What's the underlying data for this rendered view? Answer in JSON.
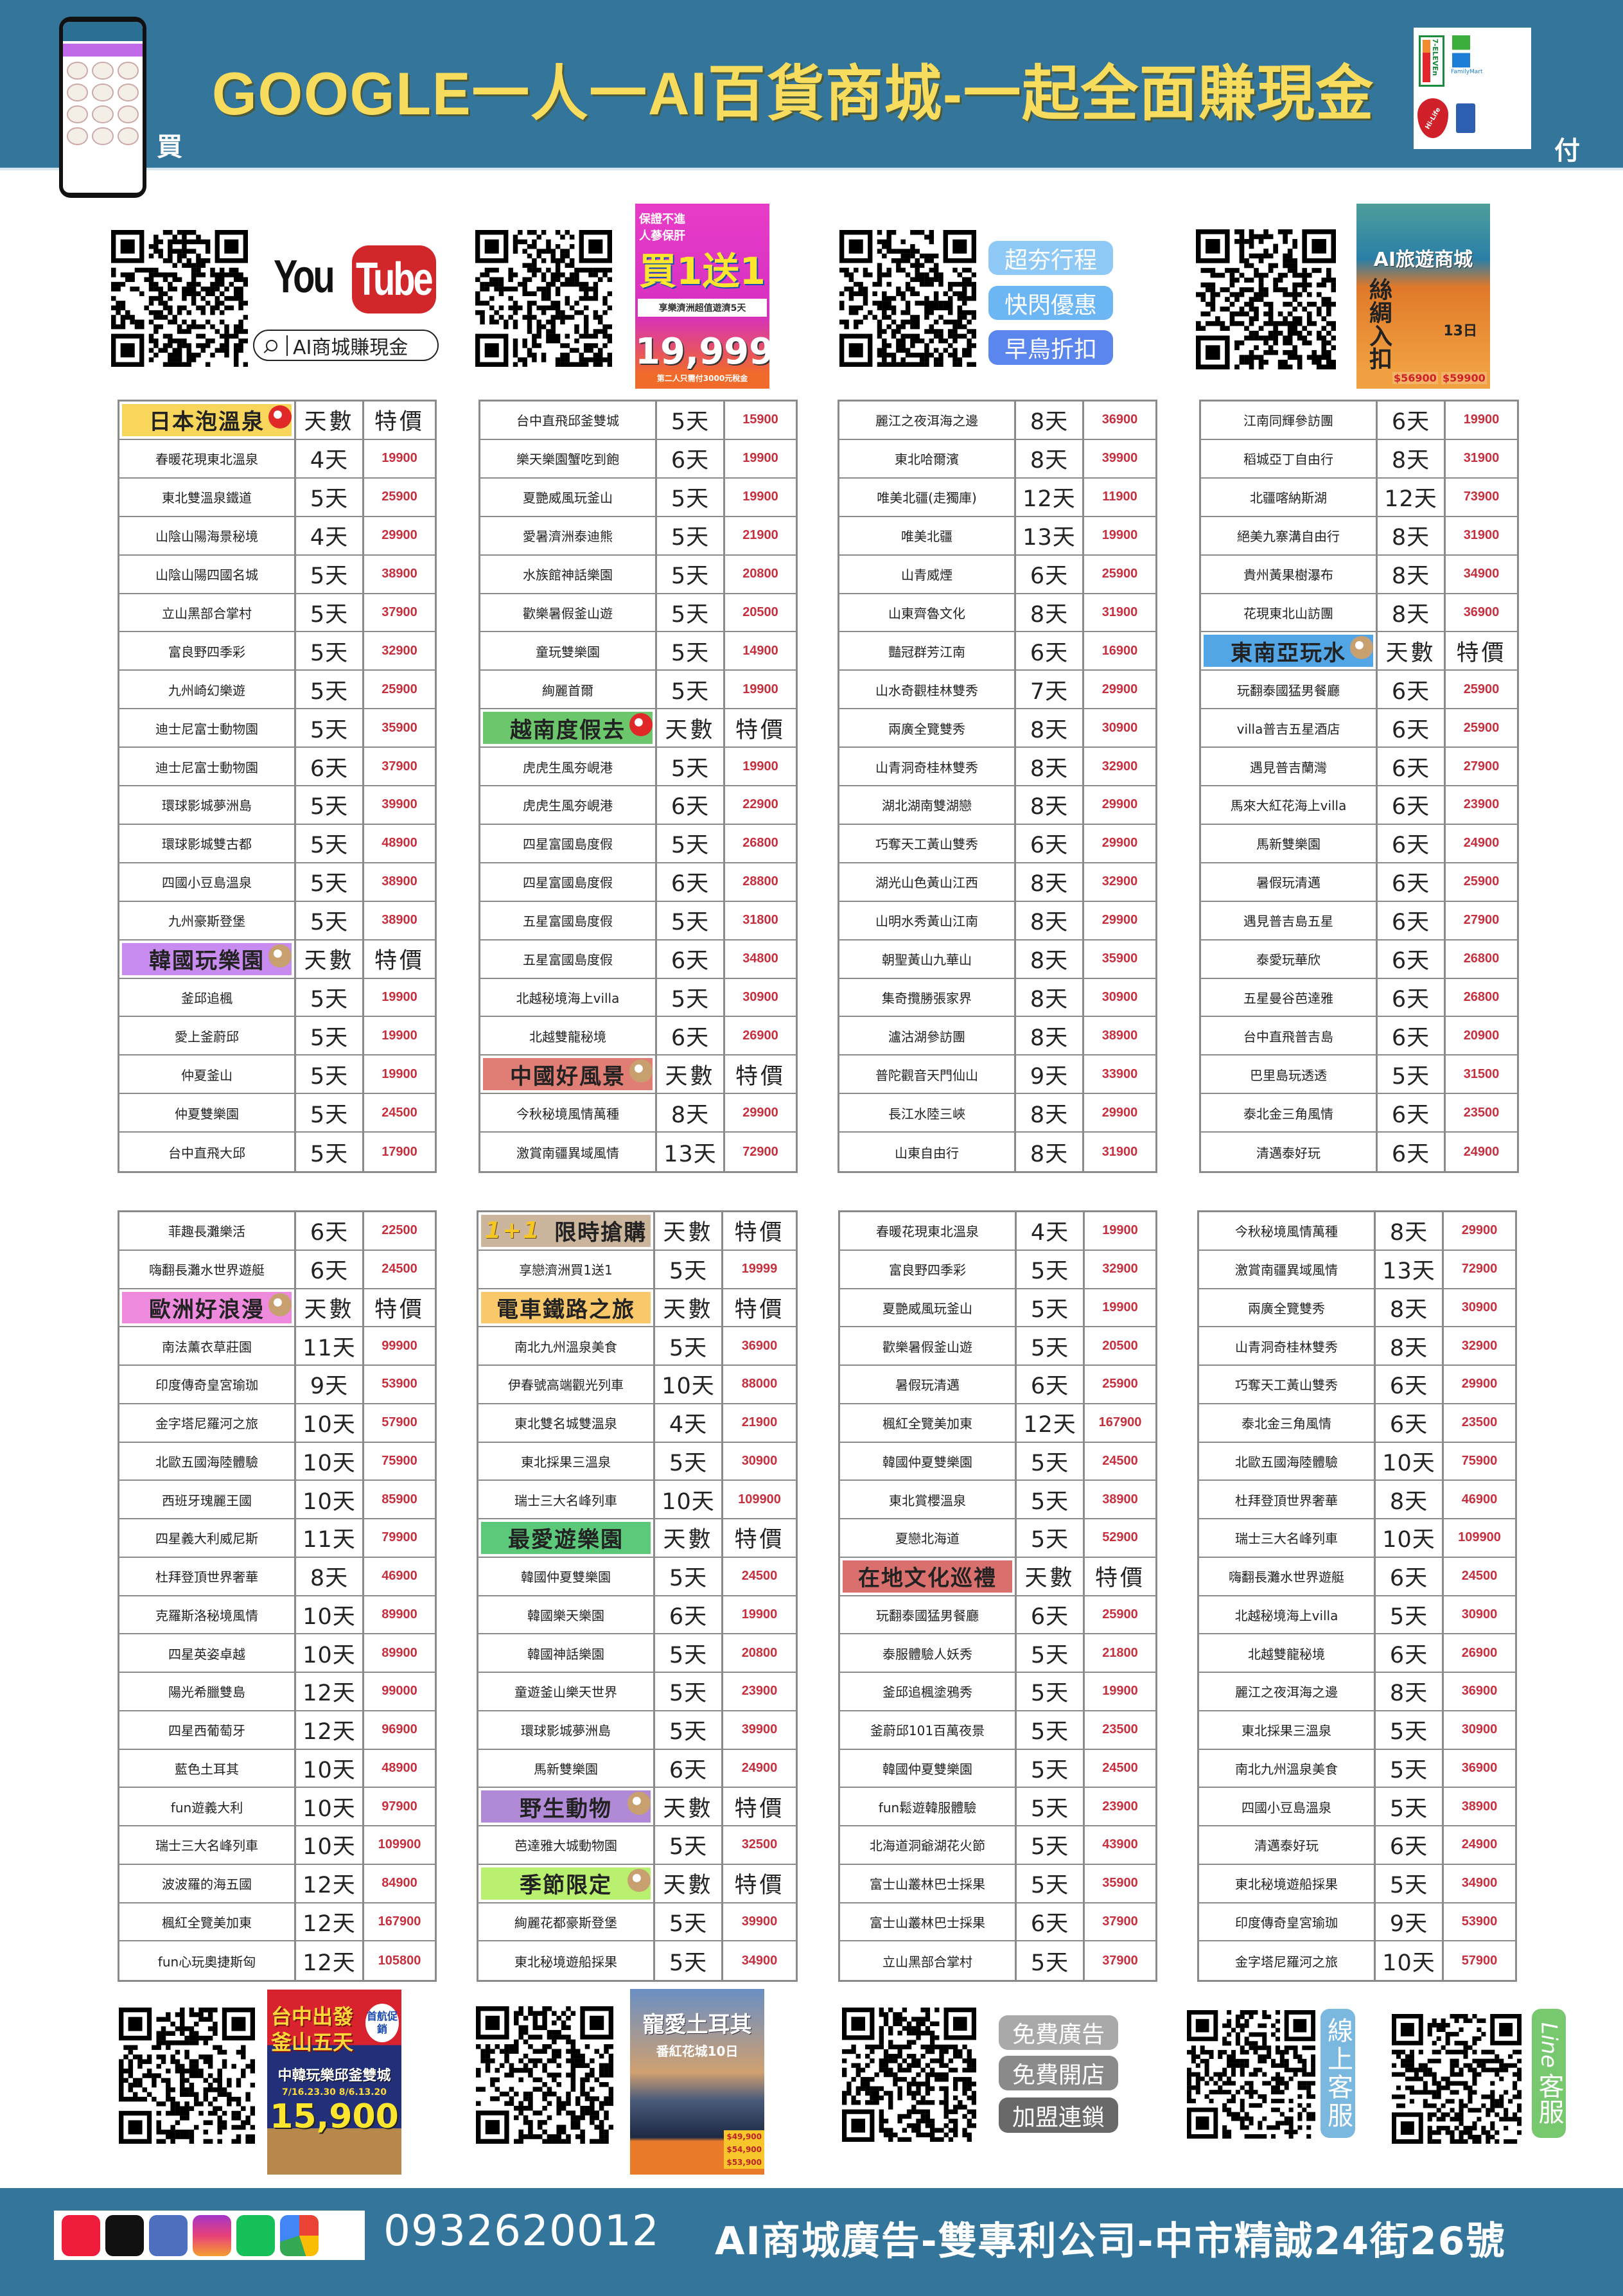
{
  "header": {
    "title": "GOOGLE一人一AI百貨商城-一起全面賺現金",
    "buy_char": "買",
    "pay_char": "付",
    "pay_logos": {
      "seven_eleven": "7-ELEVEn",
      "familymart": "FamilyMart",
      "hilife": "Hi-Life",
      "card": "credit-card"
    },
    "color": "#34759c",
    "title_color": "#f8dc5e"
  },
  "promo_top": {
    "youtube_you": "You",
    "youtube_tube": "Tube",
    "youtube_search": "AI商城賺現金",
    "ad_jeju": {
      "tag": "保證不進人蔘保肝",
      "headline": "買1送1",
      "sub": "享樂濟洲超值遊濟5天",
      "price": "19,999",
      "note": "第二人只需付3000元稅金"
    },
    "pills": [
      {
        "label": "超夯行程",
        "color": "#8fcaf7"
      },
      {
        "label": "快閃優惠",
        "color": "#6db6f4"
      },
      {
        "label": "早鳥折扣",
        "color": "#5b86ee"
      }
    ],
    "ad_silkroad": {
      "brand": "AI旅遊商城",
      "headline": "絲綢入扣",
      "days": "13日",
      "price1": "$56900",
      "price2": "$59900"
    }
  },
  "table_headers": {
    "days": "天數",
    "price": "特價"
  },
  "tables": [
    {
      "rows": [
        {
          "label": "日本泡溫泉",
          "color": "#f8d65c",
          "icon": "japan-flag-fan-icon"
        },
        [
          "春暖花現東北溫泉",
          "4天",
          "19900"
        ],
        [
          "東北雙溫泉鐵道",
          "5天",
          "25900"
        ],
        [
          "山陰山陽海景秘境",
          "4天",
          "29900"
        ],
        [
          "山陰山陽四國名城",
          "5天",
          "38900"
        ],
        [
          "立山黑部合掌村",
          "5天",
          "37900"
        ],
        [
          "富良野四季彩",
          "5天",
          "32900"
        ],
        [
          "九州崎幻樂遊",
          "5天",
          "25900"
        ],
        [
          "迪士尼富士動物園",
          "5天",
          "35900"
        ],
        [
          "迪士尼富士動物園",
          "6天",
          "37900"
        ],
        [
          "環球影城夢洲島",
          "5天",
          "39900"
        ],
        [
          "環球影城雙古都",
          "5天",
          "48900"
        ],
        [
          "四國小豆島溫泉",
          "5天",
          "38900"
        ],
        [
          "九州豪斯登堡",
          "5天",
          "38900"
        ],
        {
          "label": "韓國玩樂園",
          "color": "#c88cf0",
          "icon": "korea-fan-icon"
        },
        [
          "釜邱追楓",
          "5天",
          "19900"
        ],
        [
          "愛上釜蔚邱",
          "5天",
          "19900"
        ],
        [
          "仲夏釜山",
          "5天",
          "19900"
        ],
        [
          "仲夏雙樂園",
          "5天",
          "24500"
        ],
        [
          "台中直飛大邱",
          "5天",
          "17900"
        ]
      ]
    },
    {
      "rows": [
        [
          "台中直飛邱釜雙城",
          "5天",
          "15900"
        ],
        [
          "樂天樂園蟹吃到飽",
          "6天",
          "19900"
        ],
        [
          "夏艷威風玩釜山",
          "5天",
          "19900"
        ],
        [
          "愛暑濟洲泰迪熊",
          "5天",
          "21900"
        ],
        [
          "水族館神話樂園",
          "5天",
          "20800"
        ],
        [
          "歡樂暑假釜山遊",
          "5天",
          "20500"
        ],
        [
          "童玩雙樂園",
          "5天",
          "14900"
        ],
        [
          "絢麗首爾",
          "5天",
          "19900"
        ],
        {
          "label": "越南度假去",
          "color": "#6cc66c",
          "icon": "vietnam-flag-icon"
        },
        [
          "虎虎生風夯峴港",
          "5天",
          "19900"
        ],
        [
          "虎虎生風夯峴港",
          "6天",
          "22900"
        ],
        [
          "四星富國島度假",
          "5天",
          "26800"
        ],
        [
          "四星富國島度假",
          "6天",
          "28800"
        ],
        [
          "五星富國島度假",
          "5天",
          "31800"
        ],
        [
          "五星富國島度假",
          "6天",
          "34800"
        ],
        [
          "北越秘境海上villa",
          "5天",
          "30900"
        ],
        [
          "北越雙龍秘境",
          "6天",
          "26900"
        ],
        {
          "label": "中國好風景",
          "color": "#e07d74",
          "icon": "dumpling-steamer-icon"
        },
        [
          "今秋秘境風情萬種",
          "8天",
          "29900"
        ],
        [
          "激賞南疆異域風情",
          "13天",
          "72900"
        ]
      ]
    },
    {
      "rows": [
        [
          "麗江之夜洱海之邊",
          "8天",
          "36900"
        ],
        [
          "東北哈爾濱",
          "8天",
          "39900"
        ],
        [
          "唯美北疆(走獨庫)",
          "12天",
          "11900"
        ],
        [
          "唯美北疆",
          "13天",
          "19900"
        ],
        [
          "山青威煙",
          "6天",
          "25900"
        ],
        [
          "山東齊魯文化",
          "8天",
          "31900"
        ],
        [
          "豔冠群芳江南",
          "6天",
          "16900"
        ],
        [
          "山水奇觀桂林雙秀",
          "7天",
          "29900"
        ],
        [
          "兩廣全覽雙秀",
          "8天",
          "30900"
        ],
        [
          "山青洞奇桂林雙秀",
          "8天",
          "32900"
        ],
        [
          "湖北湖南雙湖戀",
          "8天",
          "29900"
        ],
        [
          "巧奪天工黃山雙秀",
          "6天",
          "29900"
        ],
        [
          "湖光山色黃山江西",
          "8天",
          "32900"
        ],
        [
          "山明水秀黃山江南",
          "8天",
          "29900"
        ],
        [
          "朝聖黃山九華山",
          "8天",
          "35900"
        ],
        [
          "集奇攬勝張家界",
          "8天",
          "30900"
        ],
        [
          "瀘沽湖參訪團",
          "8天",
          "38900"
        ],
        [
          "普陀觀音天門仙山",
          "9天",
          "33900"
        ],
        [
          "長江水陸三峽",
          "8天",
          "29900"
        ],
        [
          "山東自由行",
          "8天",
          "31900"
        ]
      ]
    },
    {
      "rows": [
        [
          "江南同輝參訪團",
          "6天",
          "19900"
        ],
        [
          "稻城亞丁自由行",
          "8天",
          "31900"
        ],
        [
          "北疆喀納斯湖",
          "12天",
          "73900"
        ],
        [
          "絕美九寨溝自由行",
          "8天",
          "31900"
        ],
        [
          "貴州黃果樹瀑布",
          "8天",
          "34900"
        ],
        [
          "花現東北山訪團",
          "8天",
          "36900"
        ],
        {
          "label": "東南亞玩水",
          "color": "#52a6e6",
          "icon": "buddha-statue-icon"
        },
        [
          "玩翻泰國猛男餐廳",
          "6天",
          "25900"
        ],
        [
          "villa普吉五星酒店",
          "6天",
          "25900"
        ],
        [
          "遇見普吉蘭灣",
          "6天",
          "27900"
        ],
        [
          "馬來大紅花海上villa",
          "6天",
          "23900"
        ],
        [
          "馬新雙樂園",
          "6天",
          "24900"
        ],
        [
          "暑假玩清邁",
          "6天",
          "25900"
        ],
        [
          "遇見普吉島五星",
          "6天",
          "27900"
        ],
        [
          "泰愛玩華欣",
          "6天",
          "26800"
        ],
        [
          "五星曼谷芭達雅",
          "6天",
          "26800"
        ],
        [
          "台中直飛普吉島",
          "6天",
          "20900"
        ],
        [
          "巴里島玩透透",
          "5天",
          "31500"
        ],
        [
          "泰北金三角風情",
          "6天",
          "23500"
        ],
        [
          "清邁泰好玩",
          "6天",
          "24900"
        ]
      ]
    },
    {
      "rows": [
        [
          "菲趣長灘樂活",
          "6天",
          "22500"
        ],
        [
          "嗨翻長灘水世界遊艇",
          "6天",
          "24500"
        ],
        {
          "label": "歐洲好浪漫",
          "color": "#ee8ade",
          "icon": "windmill-icon"
        },
        [
          "南法薰衣草莊園",
          "11天",
          "99900"
        ],
        [
          "印度傳奇皇宮瑜珈",
          "9天",
          "53900"
        ],
        [
          "金字塔尼羅河之旅",
          "10天",
          "57900"
        ],
        [
          "北歐五國海陸體驗",
          "10天",
          "75900"
        ],
        [
          "西班牙瑰麗王國",
          "10天",
          "85900"
        ],
        [
          "四星義大利威尼斯",
          "11天",
          "79900"
        ],
        [
          "杜拜登頂世界奢華",
          "8天",
          "46900"
        ],
        [
          "克羅斯洛秘境風情",
          "10天",
          "89900"
        ],
        [
          "四星英姿卓越",
          "10天",
          "89900"
        ],
        [
          "陽光希臘雙島",
          "12天",
          "99000"
        ],
        [
          "四星西葡萄牙",
          "12天",
          "96900"
        ],
        [
          "藍色土耳其",
          "10天",
          "48900"
        ],
        [
          "fun遊義大利",
          "10天",
          "97900"
        ],
        [
          "瑞士三大名峰列車",
          "10天",
          "109900"
        ],
        [
          "波波羅的海五國",
          "12天",
          "84900"
        ],
        [
          "楓紅全覽美加東",
          "12天",
          "167900"
        ],
        [
          "fun心玩奧捷斯匈",
          "12天",
          "105800"
        ]
      ]
    },
    {
      "rows": [
        {
          "label": "限時搶購",
          "badge": "1+1",
          "color": "#cbb59c"
        },
        [
          "享戀濟洲買1送1",
          "5天",
          "19999"
        ],
        {
          "label": "電車鐵路之旅",
          "color": "#f8c86a"
        },
        [
          "南北九州溫泉美食",
          "5天",
          "36900"
        ],
        [
          "伊春號高端觀光列車",
          "10天",
          "88000"
        ],
        [
          "東北雙名城雙溫泉",
          "4天",
          "21900"
        ],
        [
          "東北採果三溫泉",
          "5天",
          "30900"
        ],
        [
          "瑞士三大名峰列車",
          "10天",
          "109900"
        ],
        {
          "label": "最愛遊樂園",
          "color": "#5cc87a"
        },
        [
          "韓國仲夏雙樂園",
          "5天",
          "24500"
        ],
        [
          "韓國樂天樂園",
          "6天",
          "19900"
        ],
        [
          "韓國神話樂園",
          "5天",
          "20800"
        ],
        [
          "童遊釜山樂天世界",
          "5天",
          "23900"
        ],
        [
          "環球影城夢洲島",
          "5天",
          "39900"
        ],
        [
          "馬新雙樂園",
          "6天",
          "24900"
        ],
        {
          "label": "野生動物",
          "color": "#b08ad6",
          "icon": "elephant-icon"
        },
        [
          "芭達雅大城動物園",
          "5天",
          "32500"
        ],
        {
          "label": "季節限定",
          "color": "#baf070",
          "icon": "maple-leaf-icon"
        },
        [
          "絢麗花都豪斯登堡",
          "5天",
          "39900"
        ],
        [
          "東北秘境遊船採果",
          "5天",
          "34900"
        ]
      ]
    },
    {
      "rows": [
        [
          "春暖花現東北溫泉",
          "4天",
          "19900"
        ],
        [
          "富良野四季彩",
          "5天",
          "32900"
        ],
        [
          "夏艷威風玩釜山",
          "5天",
          "19900"
        ],
        [
          "歡樂暑假釜山遊",
          "5天",
          "20500"
        ],
        [
          "暑假玩清邁",
          "6天",
          "25900"
        ],
        [
          "楓紅全覽美加東",
          "12天",
          "167900"
        ],
        [
          "韓國仲夏雙樂園",
          "5天",
          "24500"
        ],
        [
          "東北賞櫻溫泉",
          "5天",
          "38900"
        ],
        [
          "夏戀北海道",
          "5天",
          "52900"
        ],
        {
          "label": "在地文化巡禮",
          "color": "#d9706e"
        },
        [
          "玩翻泰國猛男餐廳",
          "6天",
          "25900"
        ],
        [
          "泰服體驗人妖秀",
          "5天",
          "21800"
        ],
        [
          "釜邱追楓塗鴉秀",
          "5天",
          "19900"
        ],
        [
          "釜蔚邱101百萬夜景",
          "5天",
          "23500"
        ],
        [
          "韓國仲夏雙樂園",
          "5天",
          "24500"
        ],
        [
          "fun鬆遊韓服體驗",
          "5天",
          "23900"
        ],
        [
          "北海道洞爺湖花火節",
          "5天",
          "43900"
        ],
        [
          "富士山叢林巴士採果",
          "5天",
          "35900"
        ],
        [
          "富士山叢林巴士採果",
          "6天",
          "37900"
        ],
        [
          "立山黑部合掌村",
          "5天",
          "37900"
        ]
      ]
    },
    {
      "rows": [
        [
          "今秋秘境風情萬種",
          "8天",
          "29900"
        ],
        [
          "激賞南疆異域風情",
          "13天",
          "72900"
        ],
        [
          "兩廣全覽雙秀",
          "8天",
          "30900"
        ],
        [
          "山青洞奇桂林雙秀",
          "8天",
          "32900"
        ],
        [
          "巧奪天工黃山雙秀",
          "6天",
          "29900"
        ],
        [
          "泰北金三角風情",
          "6天",
          "23500"
        ],
        [
          "北歐五國海陸體驗",
          "10天",
          "75900"
        ],
        [
          "杜拜登頂世界奢華",
          "8天",
          "46900"
        ],
        [
          "瑞士三大名峰列車",
          "10天",
          "109900"
        ],
        [
          "嗨翻長灘水世界遊艇",
          "6天",
          "24500"
        ],
        [
          "北越秘境海上villa",
          "5天",
          "30900"
        ],
        [
          "北越雙龍秘境",
          "6天",
          "26900"
        ],
        [
          "麗江之夜洱海之邊",
          "8天",
          "36900"
        ],
        [
          "東北採果三溫泉",
          "5天",
          "30900"
        ],
        [
          "南北九州溫泉美食",
          "5天",
          "36900"
        ],
        [
          "四國小豆島溫泉",
          "5天",
          "38900"
        ],
        [
          "清邁泰好玩",
          "6天",
          "24900"
        ],
        [
          "東北秘境遊船採果",
          "5天",
          "34900"
        ],
        [
          "印度傳奇皇宮瑜珈",
          "9天",
          "53900"
        ],
        [
          "金字塔尼羅河之旅",
          "10天",
          "57900"
        ]
      ]
    }
  ],
  "promo_bottom": {
    "ad_busan": {
      "headline": "台中出發釜山五天",
      "tag": "首航促銷",
      "sub": "中韓玩樂邱釜雙城",
      "dates": "7/16.23.30 8/6.13.20",
      "price": "15,900"
    },
    "ad_turkey": {
      "headline": "寵愛土耳其",
      "sub": "番紅花城10日",
      "prices": [
        "$49,900",
        "$54,900",
        "$53,900"
      ]
    },
    "pills": [
      {
        "label": "免費廣告",
        "color": "#a9a9a9"
      },
      {
        "label": "免費開店",
        "color": "#8a8a8a"
      },
      {
        "label": "加盟連鎖",
        "color": "#696969"
      }
    ],
    "online_service": {
      "label": "線上客服",
      "color": "#7ab8e0"
    },
    "line_service": {
      "label_latin": "Line",
      "label": "客服",
      "color": "#78c870"
    }
  },
  "footer": {
    "social_icons": [
      "youtube-icon",
      "tiktok-icon",
      "facebook-icon",
      "instagram-icon",
      "line-icon",
      "google-icon"
    ],
    "phone": "0932620012",
    "address": "AI商城廣告-雙專利公司-中市精誠24街26號"
  }
}
